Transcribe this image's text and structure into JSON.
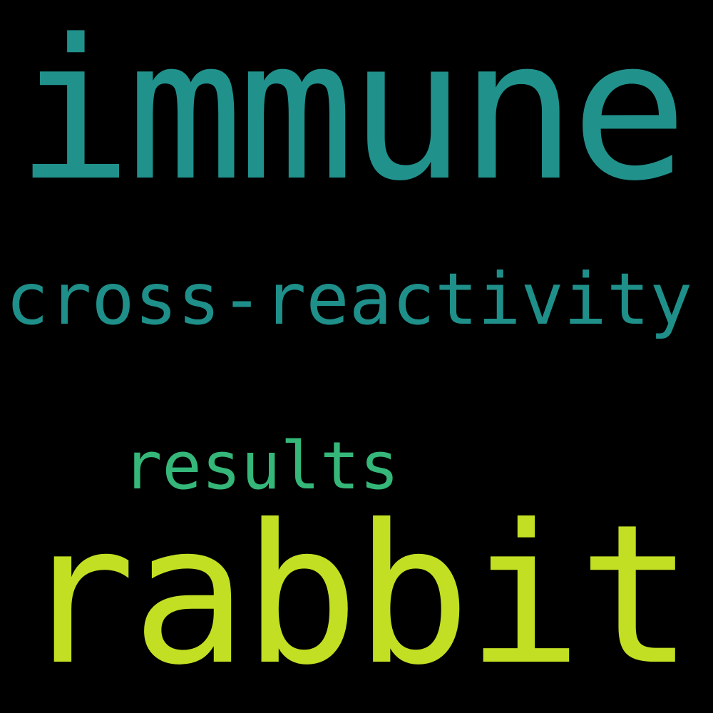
{
  "background_color": "#000000",
  "words": [
    {
      "text": "immune",
      "color": "#21918c"
    },
    {
      "text": "cross-reactivity",
      "color": "#1f8f8a"
    },
    {
      "text": "results",
      "color": "#35b779"
    },
    {
      "text": "rabbit",
      "color": "#c2df23"
    }
  ]
}
